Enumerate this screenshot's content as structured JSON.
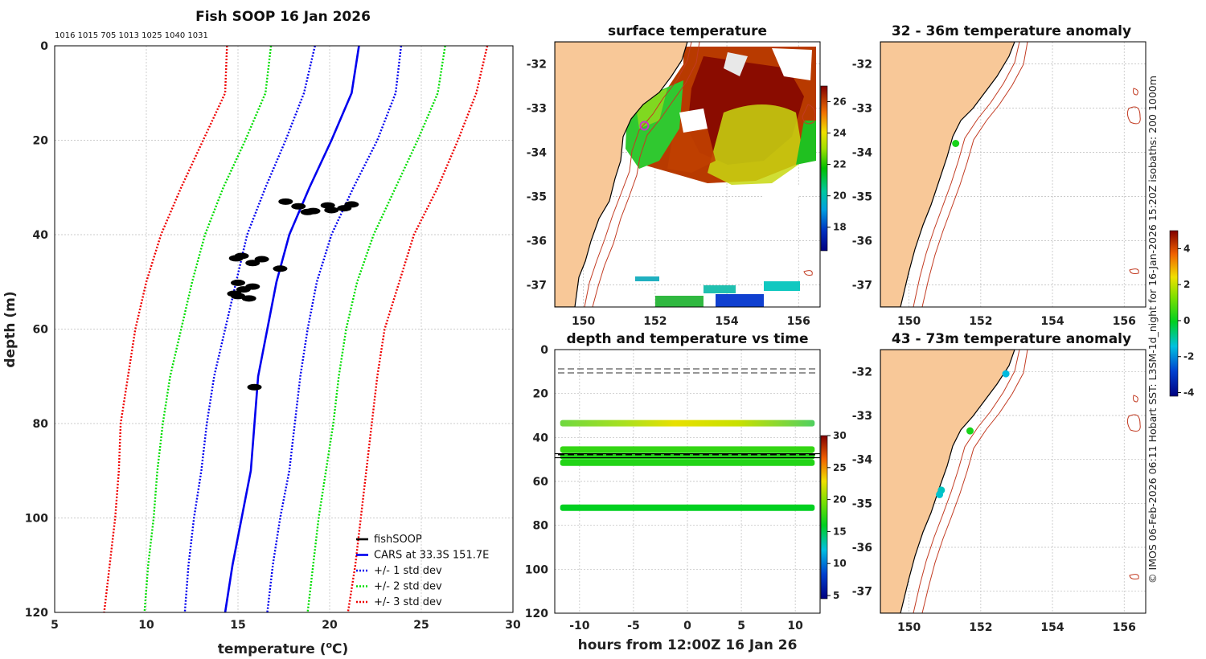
{
  "chart_data": [
    {
      "type": "line",
      "title": "Fish SOOP 16 Jan 2026",
      "subtitle": "1016 1015 705 1013 1025 1040 1031",
      "xlabel": "temperature (°C)",
      "xlabel_main": "temperature (",
      "xlabel_o": "o",
      "xlabel_tail": "C)",
      "ylabel": "depth (m)",
      "xlim": [
        5,
        30
      ],
      "ylim": [
        0,
        120
      ],
      "xticks": [
        5,
        10,
        15,
        20,
        25,
        30
      ],
      "yticks": [
        0,
        20,
        40,
        60,
        80,
        100,
        120
      ],
      "legend_position": "bottom-right",
      "depth": [
        0,
        10,
        20,
        30,
        40,
        50,
        60,
        70,
        80,
        90,
        100,
        110,
        120
      ],
      "series": [
        {
          "name": "fishSOOP",
          "color": "#000000",
          "style": "scatter",
          "points": [
            [
              17.6,
              33
            ],
            [
              18.3,
              34
            ],
            [
              19.1,
              35
            ],
            [
              19.9,
              33.8
            ],
            [
              20.8,
              34.4
            ],
            [
              21.2,
              33.6
            ],
            [
              18.8,
              35.2
            ],
            [
              20.1,
              34.8
            ],
            [
              15.2,
              44.5
            ],
            [
              16.3,
              45.2
            ],
            [
              15.8,
              46.0
            ],
            [
              14.9,
              45.0
            ],
            [
              17.3,
              47.2
            ],
            [
              15.0,
              50.2
            ],
            [
              15.8,
              51.0
            ],
            [
              15.3,
              51.6
            ],
            [
              15.0,
              53.0
            ],
            [
              15.6,
              53.5
            ],
            [
              14.8,
              52.5
            ],
            [
              15.9,
              72.3
            ]
          ]
        },
        {
          "name": "CARS at 33.3S 151.7E",
          "color": "#0000ee",
          "style": "solid",
          "values": [
            21.6,
            21.2,
            20.1,
            18.9,
            17.8,
            17.1,
            16.6,
            16.1,
            15.9,
            15.7,
            15.2,
            14.7,
            14.3
          ]
        },
        {
          "name": "+/- 1 std dev",
          "color": "#0000ee",
          "style": "dotted",
          "lower": [
            19.2,
            18.6,
            17.6,
            16.5,
            15.5,
            14.9,
            14.3,
            13.7,
            13.3,
            13.0,
            12.6,
            12.3,
            12.1
          ],
          "upper": [
            23.9,
            23.6,
            22.6,
            21.3,
            20.1,
            19.3,
            18.8,
            18.4,
            18.1,
            17.8,
            17.3,
            16.9,
            16.6
          ]
        },
        {
          "name": "+/- 2 std dev",
          "color": "#00dd00",
          "style": "dotted",
          "lower": [
            16.8,
            16.5,
            15.4,
            14.2,
            13.2,
            12.5,
            11.9,
            11.3,
            10.9,
            10.6,
            10.4,
            10.1,
            9.9
          ],
          "upper": [
            26.3,
            25.9,
            24.8,
            23.6,
            22.4,
            21.5,
            20.9,
            20.5,
            20.2,
            19.8,
            19.4,
            19.1,
            18.8
          ]
        },
        {
          "name": "+/- 3 std dev",
          "color": "#ee0000",
          "style": "dotted",
          "lower": [
            14.4,
            14.3,
            13.1,
            11.9,
            10.8,
            10.0,
            9.4,
            9.0,
            8.6,
            8.5,
            8.3,
            8.0,
            7.7
          ],
          "upper": [
            28.6,
            28.0,
            27.0,
            25.9,
            24.6,
            23.8,
            23.0,
            22.6,
            22.3,
            22.0,
            21.7,
            21.4,
            21.0
          ]
        }
      ]
    },
    {
      "type": "heatmap",
      "title": "surface temperature",
      "xlim": [
        149.2,
        156.6
      ],
      "ylim": [
        -37.5,
        -31.5
      ],
      "xticks": [
        150,
        152,
        154,
        156
      ],
      "yticks": [
        -32,
        -33,
        -34,
        -35,
        -36,
        -37
      ],
      "colorbar": {
        "min": 16.5,
        "max": 27,
        "ticks": [
          18,
          20,
          22,
          24,
          26
        ]
      },
      "vessel_marker": {
        "lon": 151.7,
        "lat": -33.4,
        "color": "#cc33cc"
      }
    },
    {
      "type": "scatter",
      "title": "32 - 36m temperature anomaly",
      "xlim": [
        149.2,
        156.6
      ],
      "ylim": [
        -37.5,
        -31.5
      ],
      "xticks": [
        150,
        152,
        154,
        156
      ],
      "yticks": [
        -32,
        -33,
        -34,
        -35,
        -36,
        -37
      ],
      "points": [
        {
          "lon": 151.3,
          "lat": -33.8,
          "anomaly": 0.2
        }
      ]
    },
    {
      "type": "scatter",
      "title": "43 - 73m temperature anomaly",
      "xlim": [
        149.2,
        156.6
      ],
      "ylim": [
        -37.5,
        -31.5
      ],
      "xticks": [
        150,
        152,
        154,
        156
      ],
      "yticks": [
        -32,
        -33,
        -34,
        -35,
        -36,
        -37
      ],
      "colorbar": {
        "min": -4.2,
        "max": 5,
        "ticks": [
          -4,
          -2,
          0,
          2,
          4
        ]
      },
      "points": [
        {
          "lon": 152.7,
          "lat": -32.05,
          "anomaly": -1.5
        },
        {
          "lon": 151.7,
          "lat": -33.35,
          "anomaly": 0.2
        },
        {
          "lon": 150.9,
          "lat": -34.7,
          "anomaly": -1.2
        },
        {
          "lon": 150.85,
          "lat": -34.8,
          "anomaly": -1.3
        }
      ]
    },
    {
      "type": "scatter",
      "title": "depth and temperature vs time",
      "xlabel": "hours from 12:00Z 16 Jan 26",
      "xlim": [
        -12.3,
        12.3
      ],
      "ylim": [
        0,
        120
      ],
      "xticks": [
        -10,
        -5,
        0,
        5,
        10
      ],
      "yticks": [
        0,
        20,
        40,
        60,
        80,
        100,
        120
      ],
      "colorbar": {
        "min": 4.5,
        "max": 30,
        "ticks": [
          5,
          10,
          15,
          20,
          25,
          30
        ]
      },
      "depth_bands": [
        {
          "depth": 33.5,
          "temperature": 21.5
        },
        {
          "depth": 45.5,
          "temperature": 17.5
        },
        {
          "depth": 48.5,
          "temperature": 17.0
        },
        {
          "depth": 51.5,
          "temperature": 17.0
        },
        {
          "depth": 72.0,
          "temperature": 16.0
        }
      ],
      "reference_lines": [
        {
          "depth": 9.5,
          "style": "dashed",
          "color": "#888888"
        },
        {
          "depth": 48.5,
          "style": "dashed",
          "color": "#000000"
        }
      ]
    }
  ],
  "side_caption": "© IMOS 06-Feb-2026 06:11 Hobart SST: L3SM-1d_night for 16-Jan-2026 15:20Z isobaths: 200  1000m"
}
